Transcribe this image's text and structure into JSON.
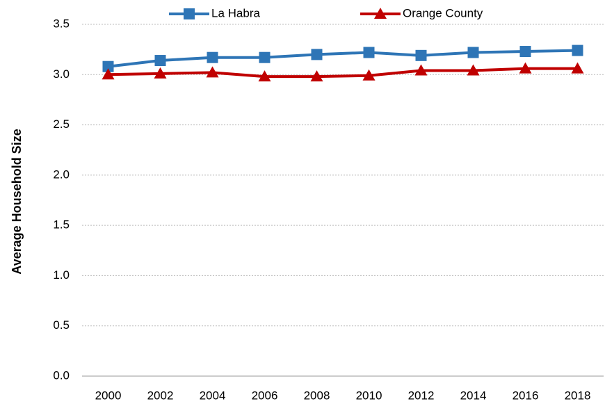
{
  "chart_data": {
    "type": "line",
    "y_label": "Average Household Size",
    "categories": [
      "2000",
      "2002",
      "2004",
      "2006",
      "2008",
      "2010",
      "2012",
      "2014",
      "2016",
      "2018"
    ],
    "series": [
      {
        "name": "La Habra",
        "color": "#2E75B6",
        "marker": "square",
        "values": [
          3.08,
          3.14,
          3.17,
          3.17,
          3.2,
          3.22,
          3.19,
          3.22,
          3.23,
          3.24
        ]
      },
      {
        "name": "Orange County",
        "color": "#C00000",
        "marker": "triangle",
        "values": [
          3.0,
          3.01,
          3.02,
          2.98,
          2.98,
          2.99,
          3.04,
          3.04,
          3.06,
          3.06
        ]
      }
    ],
    "ylim": [
      0,
      3.5
    ],
    "yticks": [
      {
        "value": 0,
        "label": "0.0"
      },
      0.5,
      {
        "value": 1,
        "label": "1.0"
      },
      1.5,
      {
        "value": 2,
        "label": "2.0"
      },
      2.5,
      {
        "value": 3,
        "label": "3.0"
      },
      3.5
    ],
    "grid": true,
    "legend": "top"
  }
}
